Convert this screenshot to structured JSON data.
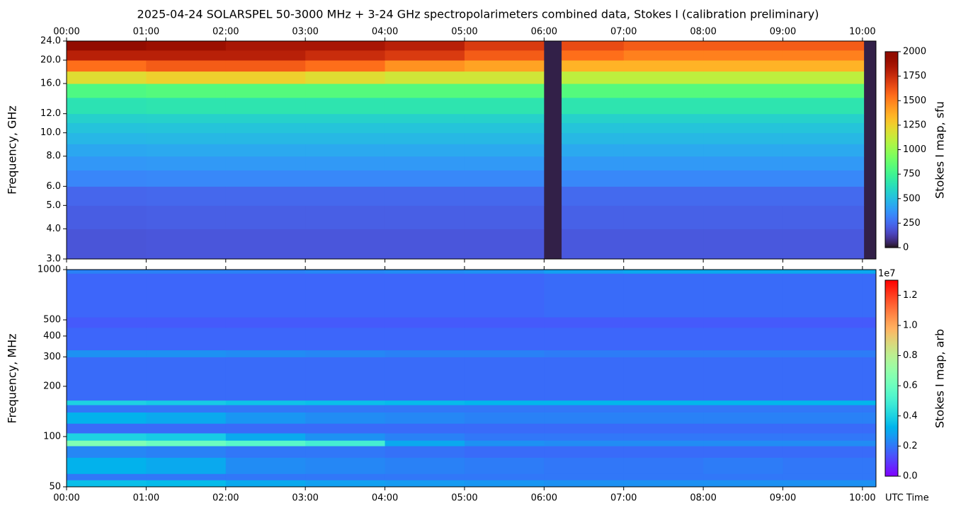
{
  "chart_data": [
    {
      "type": "heatmap",
      "title": "2025-04-24  SOLARSPEL  50-3000 MHz  +  3-24 GHz  spectropolarimeters combined data,  Stokes I  (calibration preliminary)",
      "ylabel": "Frequency, GHz",
      "log_y": true,
      "xlim": [
        0,
        10.17
      ],
      "xticks": [
        {
          "value": 0,
          "label": "00:00"
        },
        {
          "value": 1,
          "label": "01:00"
        },
        {
          "value": 2,
          "label": "02:00"
        },
        {
          "value": 3,
          "label": "03:00"
        },
        {
          "value": 4,
          "label": "04:00"
        },
        {
          "value": 5,
          "label": "05:00"
        },
        {
          "value": 6,
          "label": "06:00"
        },
        {
          "value": 7,
          "label": "07:00"
        },
        {
          "value": 8,
          "label": "08:00"
        },
        {
          "value": 9,
          "label": "09:00"
        },
        {
          "value": 10,
          "label": "10:00"
        }
      ],
      "ylim": [
        3,
        24
      ],
      "yticks": [
        {
          "value": 24,
          "label": "24.0"
        },
        {
          "value": 20,
          "label": "20.0"
        },
        {
          "value": 16,
          "label": "16.0"
        },
        {
          "value": 12,
          "label": "12.0"
        },
        {
          "value": 10,
          "label": "10.0"
        },
        {
          "value": 8,
          "label": "8.0"
        },
        {
          "value": 6,
          "label": "6.0"
        },
        {
          "value": 5,
          "label": "5.0"
        },
        {
          "value": 4,
          "label": "4.0"
        },
        {
          "value": 3,
          "label": "3.0"
        }
      ],
      "colorbar": {
        "label": "Stokes I map, sfu",
        "colormap": "turbo",
        "lim": [
          0,
          2000
        ],
        "ticks": [
          0,
          250,
          500,
          750,
          1000,
          1250,
          1500,
          1750,
          2000
        ]
      },
      "x": [
        0,
        1,
        2,
        3,
        4,
        5,
        6,
        6.22,
        7,
        8,
        9,
        10.02,
        10.17
      ],
      "y": [
        3,
        4,
        5,
        6,
        7,
        8,
        9,
        10,
        11,
        12,
        14,
        16,
        18,
        20,
        22,
        24
      ],
      "z": [
        [
          190,
          195,
          195,
          195,
          195,
          195,
          30,
          200,
          200,
          200,
          200,
          30
        ],
        [
          215,
          220,
          220,
          220,
          220,
          220,
          30,
          225,
          225,
          225,
          225,
          30
        ],
        [
          240,
          245,
          245,
          245,
          245,
          245,
          30,
          250,
          250,
          250,
          250,
          30
        ],
        [
          330,
          335,
          335,
          335,
          335,
          335,
          30,
          335,
          335,
          335,
          335,
          30
        ],
        [
          380,
          385,
          385,
          385,
          385,
          385,
          30,
          385,
          385,
          385,
          385,
          30
        ],
        [
          430,
          435,
          435,
          435,
          435,
          435,
          30,
          435,
          435,
          435,
          435,
          30
        ],
        [
          480,
          485,
          485,
          485,
          485,
          485,
          30,
          485,
          485,
          485,
          485,
          30
        ],
        [
          520,
          525,
          525,
          525,
          525,
          525,
          30,
          525,
          525,
          525,
          525,
          30
        ],
        [
          570,
          575,
          575,
          575,
          575,
          575,
          30,
          575,
          575,
          575,
          575,
          30
        ],
        [
          650,
          660,
          660,
          660,
          660,
          660,
          30,
          660,
          660,
          660,
          660,
          30
        ],
        [
          800,
          820,
          820,
          820,
          820,
          820,
          30,
          820,
          820,
          820,
          820,
          30
        ],
        [
          1200,
          1250,
          1250,
          1200,
          1150,
          1150,
          30,
          1100,
          1100,
          1100,
          1100,
          30
        ],
        [
          1550,
          1600,
          1600,
          1550,
          1450,
          1400,
          30,
          1350,
          1350,
          1350,
          1350,
          30
        ],
        [
          1800,
          1800,
          1800,
          1750,
          1700,
          1600,
          30,
          1550,
          1500,
          1500,
          1500,
          30
        ],
        [
          1950,
          1900,
          1850,
          1850,
          1800,
          1700,
          30,
          1650,
          1600,
          1600,
          1600,
          30
        ]
      ]
    },
    {
      "type": "heatmap",
      "ylabel": "Frequency, MHz",
      "xlabel": "UTC Time",
      "log_y": true,
      "xlim": [
        0,
        10.17
      ],
      "xticks": [
        {
          "value": 0,
          "label": "00:00"
        },
        {
          "value": 1,
          "label": "01:00"
        },
        {
          "value": 2,
          "label": "02:00"
        },
        {
          "value": 3,
          "label": "03:00"
        },
        {
          "value": 4,
          "label": "04:00"
        },
        {
          "value": 5,
          "label": "05:00"
        },
        {
          "value": 6,
          "label": "06:00"
        },
        {
          "value": 7,
          "label": "07:00"
        },
        {
          "value": 8,
          "label": "08:00"
        },
        {
          "value": 9,
          "label": "09:00"
        },
        {
          "value": 10,
          "label": "10:00"
        }
      ],
      "ylim": [
        50,
        1000
      ],
      "yticks": [
        50,
        100,
        200,
        300,
        400,
        500,
        1000
      ],
      "colorbar": {
        "label": "Stokes I map, arb",
        "colormap": "rainbow",
        "lim": [
          0,
          13000000
        ],
        "offset": "1e7",
        "ticks": [
          {
            "value": 0,
            "label": "0.0"
          },
          {
            "value": 2000000,
            "label": "0.2"
          },
          {
            "value": 4000000,
            "label": "0.4"
          },
          {
            "value": 6000000,
            "label": "0.6"
          },
          {
            "value": 8000000,
            "label": "0.8"
          },
          {
            "value": 10000000,
            "label": "1.0"
          },
          {
            "value": 12000000,
            "label": "1.2"
          }
        ]
      },
      "x": [
        0,
        1,
        2,
        3,
        4,
        5,
        6,
        7,
        8,
        9,
        10,
        10.17
      ],
      "y": [
        50,
        55,
        60,
        75,
        88,
        95,
        105,
        120,
        140,
        155,
        165,
        300,
        330,
        450,
        520,
        950,
        1000
      ],
      "z": [
        [
          3500000,
          3400000,
          3000000,
          2800000,
          2700000,
          2600000,
          2500000,
          2500000,
          2500000,
          2500000,
          2500000
        ],
        [
          2000000,
          2000000,
          2000000,
          2000000,
          2000000,
          2000000,
          2000000,
          2000000,
          2000000,
          2000000,
          2000000
        ],
        [
          3200000,
          3000000,
          2400000,
          2300000,
          2200000,
          2100000,
          2000000,
          2000000,
          2100000,
          2000000,
          2000000
        ],
        [
          2300000,
          2200000,
          2000000,
          2000000,
          1900000,
          1800000,
          1800000,
          1800000,
          1800000,
          1800000,
          1800000
        ],
        [
          6500000,
          6000000,
          5500000,
          5000000,
          3000000,
          2500000,
          2400000,
          2400000,
          2400000,
          2400000,
          2400000
        ],
        [
          4000000,
          3800000,
          3000000,
          2500000,
          2200000,
          2000000,
          2000000,
          2000000,
          2000000,
          2000000,
          2000000
        ],
        [
          1800000,
          1800000,
          1800000,
          1800000,
          1800000,
          1800000,
          1800000,
          1800000,
          1800000,
          1800000,
          1800000
        ],
        [
          3200000,
          3000000,
          2600000,
          2400000,
          2300000,
          2200000,
          2200000,
          2200000,
          2200000,
          2200000,
          2200000
        ],
        [
          2000000,
          2000000,
          2000000,
          2000000,
          2000000,
          2000000,
          2000000,
          2000000,
          2000000,
          2000000,
          2000000
        ],
        [
          4000000,
          3800000,
          3600000,
          3500000,
          3400000,
          3300000,
          3300000,
          3300000,
          3300000,
          3300000,
          3300000
        ],
        [
          1800000,
          1800000,
          1800000,
          1800000,
          1800000,
          1800000,
          1800000,
          1800000,
          1800000,
          1800000,
          1800000
        ],
        [
          2500000,
          2500000,
          2400000,
          2300000,
          2200000,
          2200000,
          2100000,
          2100000,
          2100000,
          2100000,
          2100000
        ],
        [
          1700000,
          1700000,
          1700000,
          1700000,
          1700000,
          1700000,
          1700000,
          1700000,
          1700000,
          1700000,
          1700000
        ],
        [
          1500000,
          1500000,
          1500000,
          1500000,
          1500000,
          1500000,
          1500000,
          1500000,
          1500000,
          1500000,
          1500000
        ],
        [
          1700000,
          1700000,
          1700000,
          1700000,
          1700000,
          1700000,
          1800000,
          1800000,
          1800000,
          1800000,
          1800000
        ],
        [
          2200000,
          2200000,
          2200000,
          2300000,
          2400000,
          2500000,
          2800000,
          3000000,
          3000000,
          3000000,
          3000000
        ]
      ]
    }
  ]
}
